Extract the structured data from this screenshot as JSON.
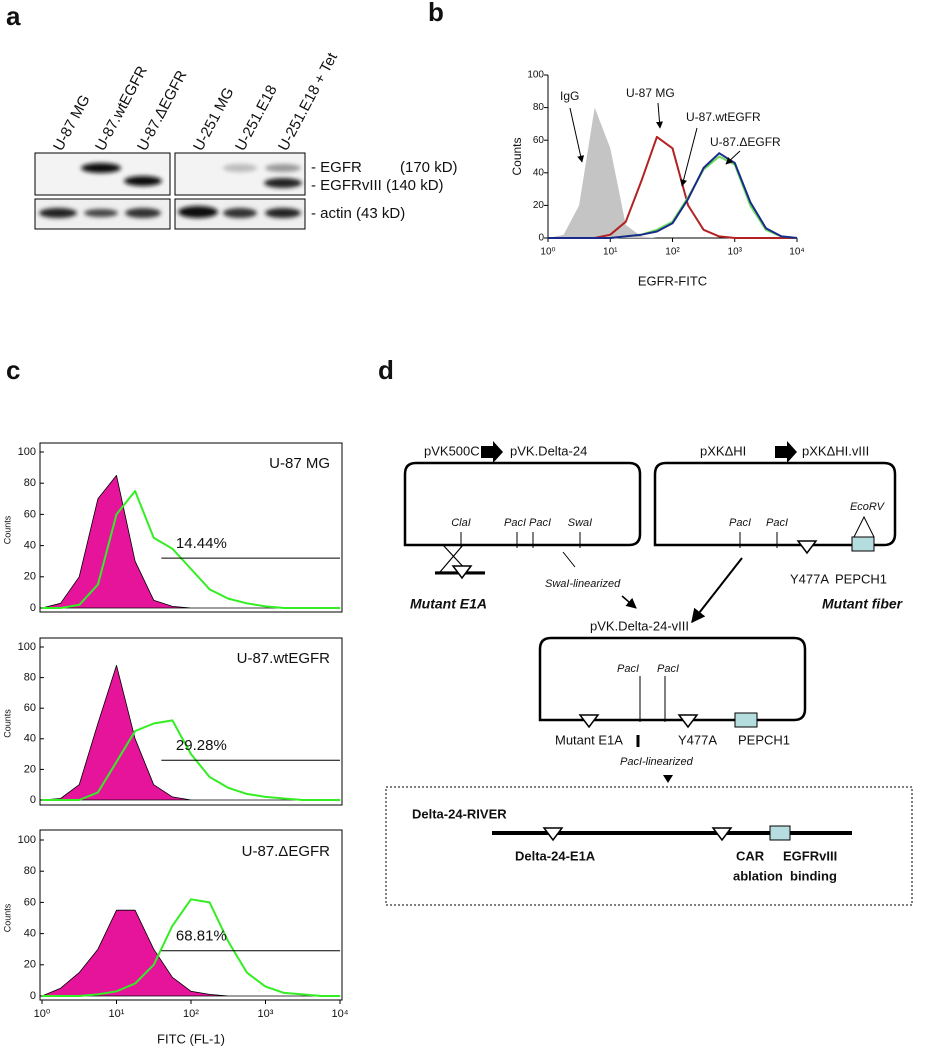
{
  "panel_labels": [
    "a",
    "b",
    "c",
    "d"
  ],
  "blot": {
    "lanes": [
      "U-87 MG",
      "U-87.wtEGFR",
      "U-87.ΔEGFR",
      "U-251 MG",
      "U-251.E18",
      "U-251.E18 + Tet"
    ],
    "bands": [
      "- EGFR",
      "(170 kD)",
      "- EGFRvIII (140 kD)",
      "- actin (43 kD)"
    ]
  },
  "chart_data": [
    {
      "type": "line",
      "xlabel": "EGFR-FITC",
      "ylabel": "Counts",
      "log_x": true,
      "xlim": [
        1,
        10000
      ],
      "ylim": [
        0,
        100
      ],
      "xticks": [
        {
          "value": 1,
          "label": "10⁰"
        },
        {
          "value": 10,
          "label": "10¹"
        },
        {
          "value": 100,
          "label": "10²"
        },
        {
          "value": 1000,
          "label": "10³"
        },
        {
          "value": 10000,
          "label": "10⁴"
        }
      ],
      "yticks": [
        0,
        20,
        40,
        60,
        80,
        100
      ],
      "x": [
        1,
        1.778,
        3.162,
        5.623,
        10,
        17.78,
        31.62,
        56.23,
        100,
        177.8,
        316.2,
        562.3,
        1000,
        1778,
        3162,
        5623,
        10000
      ],
      "series": [
        {
          "name": "IgG",
          "color": "#c4c4c4",
          "fill": true,
          "values": [
            0,
            2,
            20,
            80,
            55,
            8,
            1,
            0,
            0,
            0,
            0,
            0,
            0,
            0,
            0,
            0,
            0
          ]
        },
        {
          "name": "U-87 MG",
          "color": "#b22222",
          "values": [
            0,
            0,
            0,
            0,
            2,
            10,
            35,
            62,
            55,
            20,
            5,
            1,
            0,
            0,
            0,
            0,
            0
          ]
        },
        {
          "name": "U-87.wtEGFR",
          "color": "#66dd55",
          "values": [
            0,
            0,
            0,
            0,
            0,
            1,
            2,
            5,
            10,
            25,
            42,
            50,
            45,
            20,
            5,
            1,
            0
          ]
        },
        {
          "name": "U-87.ΔEGFR",
          "color": "#1a2a8a",
          "values": [
            0,
            0,
            0,
            0,
            0,
            1,
            2,
            4,
            9,
            24,
            43,
            52,
            46,
            22,
            6,
            1,
            0
          ]
        }
      ]
    },
    {
      "type": "line",
      "ylabel": "Counts",
      "label": "U-87 MG",
      "log_x": true,
      "xlim": [
        1,
        10000
      ],
      "ylim": [
        0,
        100
      ],
      "yticks": [
        0,
        20,
        40,
        60,
        80,
        100
      ],
      "gate": {
        "x_start": 40,
        "y": 32,
        "label": "14.44%"
      },
      "x": [
        1,
        1.778,
        3.162,
        5.623,
        10,
        17.78,
        31.62,
        56.23,
        100,
        177.8,
        316.2,
        562.3,
        1000,
        1778,
        3162,
        5623,
        10000
      ],
      "series": [
        {
          "color": "#e6149b",
          "outline": "#000000",
          "fill": true,
          "values": [
            0,
            3,
            20,
            70,
            85,
            30,
            5,
            1,
            0,
            0,
            0,
            0,
            0,
            0,
            0,
            0,
            0
          ]
        },
        {
          "color": "#33ee22",
          "values": [
            0,
            0,
            2,
            15,
            60,
            75,
            45,
            38,
            25,
            12,
            6,
            3,
            1,
            0,
            0,
            0,
            0
          ]
        }
      ]
    },
    {
      "type": "line",
      "ylabel": "Counts",
      "label": "U-87.wtEGFR",
      "log_x": true,
      "xlim": [
        1,
        10000
      ],
      "ylim": [
        0,
        100
      ],
      "yticks": [
        0,
        20,
        40,
        60,
        80,
        100
      ],
      "gate": {
        "x_start": 40,
        "y": 26,
        "label": "29.28%"
      },
      "x": [
        1,
        1.778,
        3.162,
        5.623,
        10,
        17.78,
        31.62,
        56.23,
        100,
        177.8,
        316.2,
        562.3,
        1000,
        1778,
        3162,
        5623,
        10000
      ],
      "series": [
        {
          "color": "#e6149b",
          "outline": "#000000",
          "fill": true,
          "values": [
            0,
            1,
            10,
            50,
            88,
            40,
            10,
            2,
            0,
            0,
            0,
            0,
            0,
            0,
            0,
            0,
            0
          ]
        },
        {
          "color": "#33ee22",
          "values": [
            0,
            0,
            0,
            5,
            25,
            45,
            50,
            52,
            30,
            15,
            8,
            4,
            2,
            1,
            0,
            0,
            0
          ]
        }
      ]
    },
    {
      "type": "line",
      "ylabel": "Counts",
      "label": "U-87.ΔEGFR",
      "xlabel": "FITC (FL-1)",
      "log_x": true,
      "xlim": [
        1,
        10000
      ],
      "ylim": [
        0,
        100
      ],
      "yticks": [
        0,
        20,
        40,
        60,
        80,
        100
      ],
      "xticks": [
        {
          "value": 1,
          "label": "10⁰"
        },
        {
          "value": 10,
          "label": "10¹"
        },
        {
          "value": 100,
          "label": "10²"
        },
        {
          "value": 1000,
          "label": "10³"
        },
        {
          "value": 10000,
          "label": "10⁴"
        }
      ],
      "gate": {
        "x_start": 40,
        "y": 29,
        "label": "68.81%"
      },
      "x": [
        1,
        1.778,
        3.162,
        5.623,
        10,
        17.78,
        31.62,
        56.23,
        100,
        177.8,
        316.2,
        562.3,
        1000,
        1778,
        3162,
        5623,
        10000
      ],
      "series": [
        {
          "color": "#e6149b",
          "outline": "#000000",
          "fill": true,
          "values": [
            0,
            5,
            15,
            30,
            55,
            55,
            30,
            12,
            3,
            1,
            0,
            0,
            0,
            0,
            0,
            0,
            0
          ]
        },
        {
          "color": "#33ee22",
          "values": [
            0,
            0,
            0,
            1,
            3,
            8,
            20,
            45,
            62,
            60,
            35,
            15,
            6,
            2,
            1,
            0,
            0
          ]
        }
      ]
    }
  ],
  "diagram": {
    "top_left": {
      "from": "pVK500C",
      "to": "pVK.Delta-24",
      "sites": [
        "ClaI",
        "PacI",
        "PacI",
        "SwaI"
      ],
      "insert": "Mutant E1A"
    },
    "top_right": {
      "from": "pXKΔHI",
      "to": "pXKΔHI.vIII",
      "sites": [
        "PacI",
        "PacI",
        "EcoRV"
      ],
      "mutations": [
        "Y477A",
        "PEPCH1"
      ],
      "insert": "Mutant fiber"
    },
    "swa_linearized": "SwaI-linearized",
    "middle": {
      "name": "pVK.Delta-24-vIII",
      "sites": [
        "PacI",
        "PacI"
      ],
      "features": [
        "Mutant E1A",
        "Y477A",
        "PEPCH1"
      ],
      "linearized": "PacI-linearized"
    },
    "final": {
      "name": "Delta-24-RIVER",
      "features": [
        "Delta-24-E1A",
        "CAR",
        "ablation",
        "EGFRvIII",
        "binding"
      ]
    }
  }
}
